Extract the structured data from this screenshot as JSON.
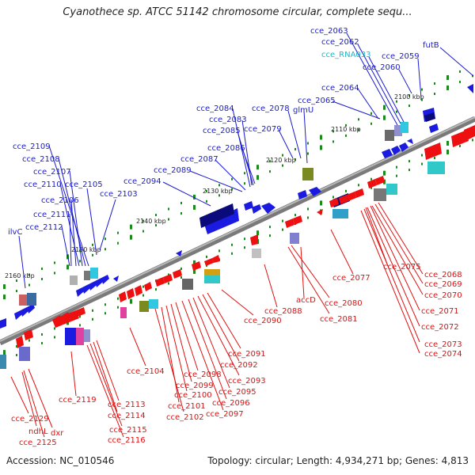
{
  "title": "Cyanothece sp. ATCC 51142 chromosome circular, complete sequ...",
  "footer": {
    "accession": "Accession: NC_010546",
    "topology": "Topology: circular; Length: 4,934,271 bp; Genes: 4,813"
  },
  "colors": {
    "forward": "#1a1ae0",
    "reverse": "#ee1010",
    "backbone": "#808080",
    "tick": "#1a8a1a",
    "rna_label": "#18b8c8"
  },
  "kbp_ticks": [
    "2100 kbp",
    "2110 kbp",
    "2120 kbp",
    "2130 kbp",
    "2140 kbp",
    "2150 kbp",
    "2160 kbp"
  ],
  "top_labels": [
    {
      "text": "cce_2063",
      "color": "blue"
    },
    {
      "text": "cce_2062",
      "color": "blue"
    },
    {
      "text": "cce_RNA033",
      "color": "cyan"
    },
    {
      "text": "futB",
      "color": "blue"
    },
    {
      "text": "cce_2059",
      "color": "blue"
    },
    {
      "text": "cce_2060",
      "color": "blue"
    },
    {
      "text": "cce_2064",
      "color": "blue"
    },
    {
      "text": "cce_2065",
      "color": "blue"
    },
    {
      "text": "cce_2078",
      "color": "blue"
    },
    {
      "text": "glmU",
      "color": "blue"
    },
    {
      "text": "cce_2079",
      "color": "blue"
    },
    {
      "text": "cce_2084",
      "color": "blue"
    },
    {
      "text": "cce_2083",
      "color": "blue"
    },
    {
      "text": "cce_2085",
      "color": "blue"
    },
    {
      "text": "cce_2086",
      "color": "blue"
    },
    {
      "text": "cce_2087",
      "color": "blue"
    },
    {
      "text": "cce_2089",
      "color": "blue"
    },
    {
      "text": "cce_2094",
      "color": "blue"
    },
    {
      "text": "cce_2109",
      "color": "blue"
    },
    {
      "text": "cce_2108",
      "color": "blue"
    },
    {
      "text": "cce_2107",
      "color": "blue"
    },
    {
      "text": "cce_2110",
      "color": "blue"
    },
    {
      "text": "cce_2105",
      "color": "blue"
    },
    {
      "text": "cce_2106",
      "color": "blue"
    },
    {
      "text": "cce_2103",
      "color": "blue"
    },
    {
      "text": "cce_2111",
      "color": "blue"
    },
    {
      "text": "cce_2112",
      "color": "blue"
    },
    {
      "text": "ilvC",
      "color": "blue"
    }
  ],
  "bottom_labels": [
    "cce_2068",
    "cce_2069",
    "cce_2070",
    "cce_2075",
    "cce_2077",
    "cce_2071",
    "cce_2072",
    "cce_2073",
    "cce_2074",
    "accD",
    "cce_2080",
    "cce_2081",
    "cce_2088",
    "cce_2090",
    "cce_2091",
    "cce_2092",
    "cce_2093",
    "cce_2095",
    "cce_2096",
    "cce_2097",
    "cce_2098",
    "cce_2099",
    "cce_2100",
    "cce_2101",
    "cce_2102",
    "cce_2104",
    "cce_2113",
    "cce_2114",
    "cce_2115",
    "cce_2116",
    "cce_2119",
    "cce_2129",
    "ndhL",
    "dxr",
    "cce_2125"
  ]
}
